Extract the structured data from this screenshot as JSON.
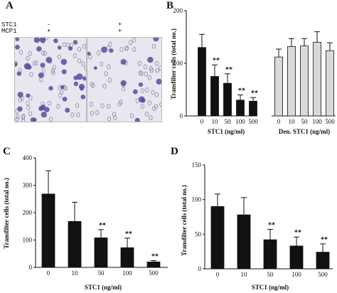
{
  "panels": {
    "a": {
      "label": "A",
      "row1_label": "STC1",
      "row2_label": "MCP1",
      "col1_row1": "-",
      "col1_row2": "+",
      "col2_row1": "+",
      "col2_row2": "+"
    },
    "b": {
      "label": "B"
    },
    "c": {
      "label": "C"
    },
    "d": {
      "label": "D"
    }
  },
  "colors": {
    "bar_dark": "#111111",
    "bar_light": "#d9d9d9",
    "cell": "#5a4aa0",
    "bg_micro": "#e9e6ef"
  },
  "chart_data": [
    {
      "id": "b",
      "type": "bar",
      "ylabel": "Transfilter cells (total no.)",
      "ylim": [
        0,
        200
      ],
      "yticks": [
        "0",
        "100",
        "200"
      ],
      "groups": [
        {
          "xlabel": "STC1 (ng/ml)",
          "categories": [
            "0",
            "10",
            "50",
            "100",
            "500"
          ],
          "values": [
            130,
            75,
            62,
            30,
            28
          ],
          "errors": [
            25,
            22,
            18,
            10,
            7
          ],
          "annotations": [
            "",
            "**",
            "**",
            "**",
            "**"
          ],
          "color": "dark"
        },
        {
          "xlabel": "Den. STC1 (ng/ml)",
          "categories": [
            "0",
            "10",
            "50",
            "100",
            "500"
          ],
          "values": [
            112,
            132,
            133,
            140,
            124
          ],
          "errors": [
            15,
            15,
            14,
            20,
            15
          ],
          "annotations": [
            "",
            "",
            "",
            "",
            ""
          ],
          "color": "light"
        }
      ]
    },
    {
      "id": "c",
      "type": "bar",
      "ylabel": "Transfilter cells (total no.)",
      "xlabel": "STC1 (ng/ml)",
      "ylim": [
        0,
        400
      ],
      "yticks": [
        "0",
        "100",
        "200",
        "300",
        "400"
      ],
      "categories": [
        "0",
        "10",
        "50",
        "100",
        "500"
      ],
      "values": [
        268,
        168,
        108,
        72,
        20
      ],
      "errors": [
        85,
        70,
        30,
        35,
        5
      ],
      "annotations": [
        "",
        "",
        "**",
        "**",
        "**"
      ]
    },
    {
      "id": "d",
      "type": "bar",
      "ylabel": "Transfilter cells (total no.)",
      "xlabel": "STC1 (ng/ml)",
      "ylim": [
        0,
        150
      ],
      "yticks": [
        "0",
        "50",
        "100",
        "150"
      ],
      "categories": [
        "0",
        "10",
        "50",
        "100",
        "500"
      ],
      "values": [
        90,
        78,
        42,
        33,
        24
      ],
      "errors": [
        18,
        25,
        15,
        13,
        12
      ],
      "annotations": [
        "",
        "",
        "**",
        "**",
        "**"
      ]
    }
  ]
}
